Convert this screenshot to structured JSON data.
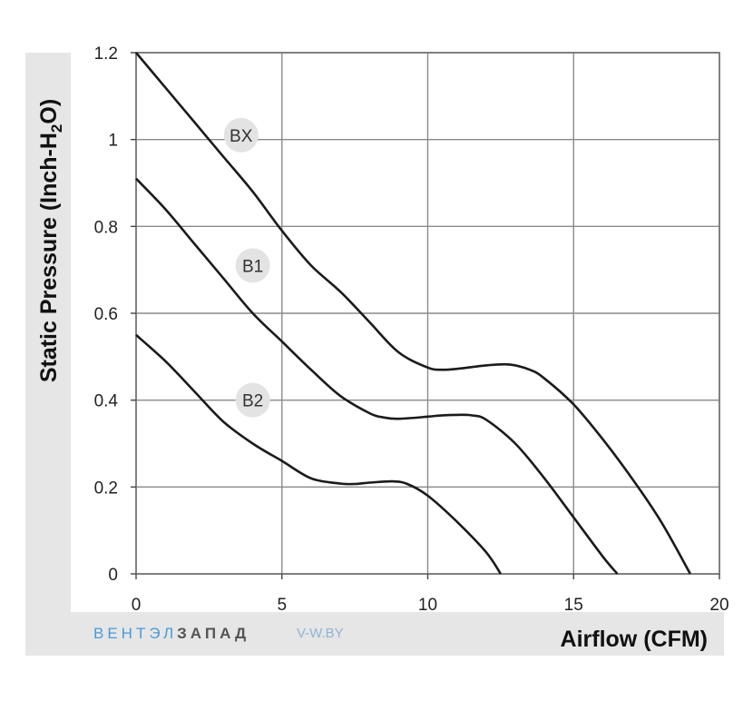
{
  "chart_data": {
    "type": "line",
    "xlabel": "Airflow (CFM)",
    "ylabel_main": "Static Pressure (Inch-H",
    "ylabel_sub": "2",
    "ylabel_end": "O)",
    "xlim": [
      0,
      20
    ],
    "ylim": [
      0,
      1.2
    ],
    "x_ticks": [
      0,
      5,
      10,
      15,
      20
    ],
    "x_tick_labels": [
      "0",
      "5",
      "10",
      "15",
      "20"
    ],
    "y_ticks": [
      0,
      0.2,
      0.4,
      0.6,
      0.8,
      1.0,
      1.2
    ],
    "y_tick_labels": [
      "0",
      "0.2",
      "0.4",
      "0.6",
      "0.8",
      "1",
      "1.2"
    ],
    "grid": true,
    "series": [
      {
        "name": "BX",
        "label_at": [
          3.6,
          1.01
        ],
        "points": [
          [
            0,
            1.2
          ],
          [
            1,
            1.12
          ],
          [
            2,
            1.04
          ],
          [
            3,
            0.96
          ],
          [
            4,
            0.88
          ],
          [
            5,
            0.79
          ],
          [
            6,
            0.71
          ],
          [
            7,
            0.65
          ],
          [
            8,
            0.58
          ],
          [
            9,
            0.51
          ],
          [
            10,
            0.475
          ],
          [
            10.5,
            0.47
          ],
          [
            11,
            0.472
          ],
          [
            12,
            0.48
          ],
          [
            12.8,
            0.482
          ],
          [
            13.5,
            0.47
          ],
          [
            14,
            0.45
          ],
          [
            15,
            0.39
          ],
          [
            16,
            0.31
          ],
          [
            17,
            0.22
          ],
          [
            18,
            0.12
          ],
          [
            19,
            0.0
          ]
        ]
      },
      {
        "name": "B1",
        "label_at": [
          4.0,
          0.71
        ],
        "points": [
          [
            0,
            0.91
          ],
          [
            1,
            0.84
          ],
          [
            2,
            0.76
          ],
          [
            3,
            0.68
          ],
          [
            4,
            0.6
          ],
          [
            5,
            0.535
          ],
          [
            6,
            0.47
          ],
          [
            7,
            0.41
          ],
          [
            8,
            0.37
          ],
          [
            8.5,
            0.36
          ],
          [
            9,
            0.357
          ],
          [
            10,
            0.362
          ],
          [
            10.5,
            0.365
          ],
          [
            11,
            0.366
          ],
          [
            11.5,
            0.365
          ],
          [
            12,
            0.355
          ],
          [
            13,
            0.3
          ],
          [
            14,
            0.22
          ],
          [
            15,
            0.13
          ],
          [
            16,
            0.04
          ],
          [
            16.5,
            0.0
          ]
        ]
      },
      {
        "name": "B2",
        "label_at": [
          4.0,
          0.4
        ],
        "points": [
          [
            0,
            0.55
          ],
          [
            1,
            0.49
          ],
          [
            2,
            0.42
          ],
          [
            3,
            0.35
          ],
          [
            4,
            0.3
          ],
          [
            5,
            0.26
          ],
          [
            6,
            0.22
          ],
          [
            7,
            0.208
          ],
          [
            7.5,
            0.207
          ],
          [
            8,
            0.21
          ],
          [
            8.8,
            0.213
          ],
          [
            9.3,
            0.207
          ],
          [
            10,
            0.18
          ],
          [
            11,
            0.12
          ],
          [
            12,
            0.05
          ],
          [
            12.5,
            0.0
          ]
        ]
      }
    ]
  },
  "branding": {
    "name_part1": "ВЕНТЭЛ",
    "name_part2": "ЗАПАД",
    "site": "V-W.BY"
  }
}
